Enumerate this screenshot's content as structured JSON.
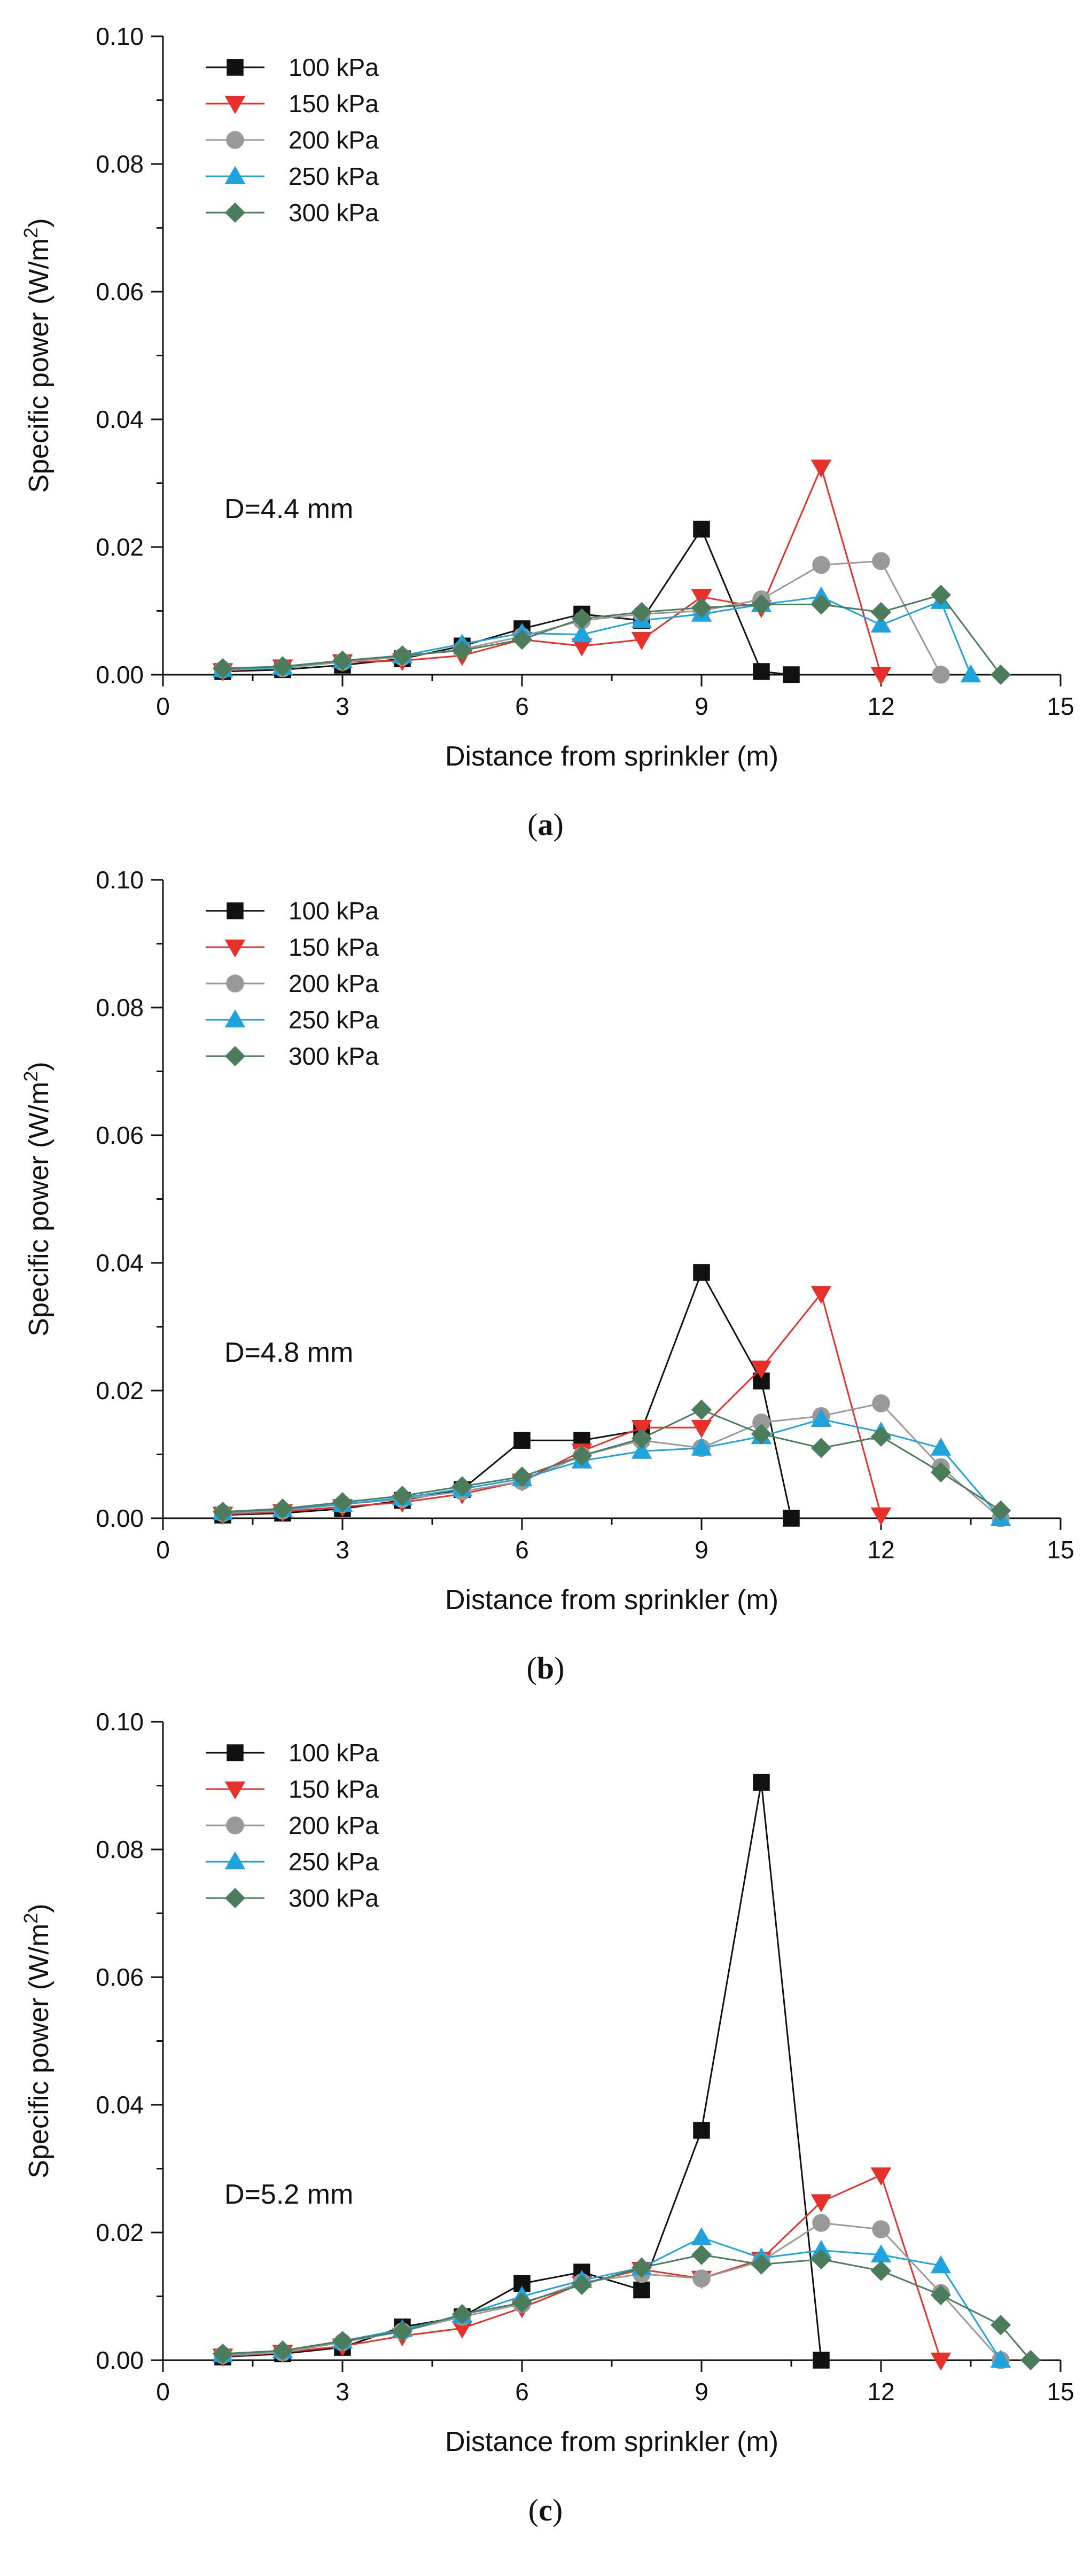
{
  "chart_data": [
    {
      "type": "line",
      "panel_label": "a",
      "annotation": "D=4.4 mm",
      "xlabel": "Distance from sprinkler (m)",
      "ylabel": "Specific power (W/m²)",
      "ylabel_main": "Specific power (W/m",
      "ylabel_sup": "2",
      "ylabel_close": ")",
      "xlim": [
        0,
        15
      ],
      "ylim": [
        0,
        0.1
      ],
      "xticks": [
        0,
        3,
        6,
        9,
        12,
        15
      ],
      "yticks": [
        0,
        0.02,
        0.04,
        0.06,
        0.08,
        0.1
      ],
      "xtick_labels": [
        "0",
        "3",
        "6",
        "9",
        "12",
        "15"
      ],
      "ytick_labels": [
        "0.00",
        "0.02",
        "0.04",
        "0.06",
        "0.08",
        "0.10"
      ],
      "legend_position": "top-left",
      "series": [
        {
          "name": "100 kPa",
          "color": "#111111",
          "marker": "square",
          "x": [
            1,
            2,
            3,
            4,
            5,
            6,
            7,
            8,
            9,
            10,
            10.5
          ],
          "values": [
            0.0005,
            0.0008,
            0.0015,
            0.0025,
            0.0045,
            0.0072,
            0.0095,
            0.0085,
            0.0228,
            0.0005,
            0.0
          ]
        },
        {
          "name": "150 kPa",
          "color": "#e8302a",
          "marker": "triangle-down",
          "x": [
            1,
            2,
            3,
            4,
            5,
            6,
            7,
            8,
            9,
            10,
            11,
            12
          ],
          "values": [
            0.0006,
            0.0012,
            0.002,
            0.0022,
            0.003,
            0.0055,
            0.0045,
            0.0055,
            0.0122,
            0.0105,
            0.0325,
            0.0
          ]
        },
        {
          "name": "200 kPa",
          "color": "#999999",
          "marker": "circle",
          "x": [
            1,
            2,
            3,
            4,
            5,
            6,
            7,
            8,
            9,
            10,
            11,
            12,
            13
          ],
          "values": [
            0.0008,
            0.001,
            0.002,
            0.0028,
            0.004,
            0.006,
            0.0085,
            0.0095,
            0.01,
            0.0118,
            0.0172,
            0.0178,
            0.0
          ]
        },
        {
          "name": "250 kPa",
          "color": "#1fa3dd",
          "marker": "triangle-up",
          "x": [
            1,
            2,
            3,
            4,
            5,
            6,
            7,
            8,
            9,
            10,
            11,
            12,
            13,
            13.5
          ],
          "values": [
            0.0008,
            0.0012,
            0.0022,
            0.003,
            0.0048,
            0.0065,
            0.0063,
            0.0085,
            0.0095,
            0.011,
            0.0122,
            0.0078,
            0.0115,
            0.0
          ]
        },
        {
          "name": "300 kPa",
          "color": "#4b7c5c",
          "marker": "diamond",
          "x": [
            1,
            2,
            3,
            4,
            5,
            6,
            7,
            8,
            9,
            10,
            11,
            12,
            13,
            14
          ],
          "values": [
            0.001,
            0.0013,
            0.0022,
            0.003,
            0.0038,
            0.0055,
            0.0088,
            0.0098,
            0.0105,
            0.011,
            0.011,
            0.0098,
            0.0125,
            0.0
          ]
        }
      ]
    },
    {
      "type": "line",
      "panel_label": "b",
      "annotation": "D=4.8 mm",
      "xlabel": "Distance from sprinkler (m)",
      "ylabel": "Specific power (W/m²)",
      "ylabel_main": "Specific power (W/m",
      "ylabel_sup": "2",
      "ylabel_close": ")",
      "xlim": [
        0,
        15
      ],
      "ylim": [
        0,
        0.1
      ],
      "xticks": [
        0,
        3,
        6,
        9,
        12,
        15
      ],
      "yticks": [
        0,
        0.02,
        0.04,
        0.06,
        0.08,
        0.1
      ],
      "xtick_labels": [
        "0",
        "3",
        "6",
        "9",
        "12",
        "15"
      ],
      "ytick_labels": [
        "0.00",
        "0.02",
        "0.04",
        "0.06",
        "0.08",
        "0.10"
      ],
      "legend_position": "top-left",
      "series": [
        {
          "name": "100 kPa",
          "color": "#111111",
          "marker": "square",
          "x": [
            1,
            2,
            3,
            4,
            5,
            6,
            7,
            8,
            9,
            10,
            10.5
          ],
          "values": [
            0.0005,
            0.0008,
            0.0015,
            0.0028,
            0.0045,
            0.0122,
            0.0122,
            0.0138,
            0.0385,
            0.0215,
            0.0
          ]
        },
        {
          "name": "150 kPa",
          "color": "#e8302a",
          "marker": "triangle-down",
          "x": [
            1,
            2,
            3,
            4,
            5,
            6,
            7,
            8,
            9,
            10,
            11,
            12
          ],
          "values": [
            0.0006,
            0.001,
            0.0018,
            0.0025,
            0.0038,
            0.0058,
            0.0105,
            0.0142,
            0.0142,
            0.0235,
            0.0352,
            0.0005
          ]
        },
        {
          "name": "200 kPa",
          "color": "#999999",
          "marker": "circle",
          "x": [
            1,
            2,
            3,
            4,
            5,
            6,
            7,
            8,
            9,
            10,
            11,
            12,
            13,
            14
          ],
          "values": [
            0.0008,
            0.0012,
            0.0022,
            0.003,
            0.0042,
            0.0058,
            0.0098,
            0.0122,
            0.011,
            0.015,
            0.016,
            0.018,
            0.008,
            0.0
          ]
        },
        {
          "name": "250 kPa",
          "color": "#1fa3dd",
          "marker": "triangle-up",
          "x": [
            1,
            2,
            3,
            4,
            5,
            6,
            7,
            8,
            9,
            10,
            11,
            12,
            13,
            14
          ],
          "values": [
            0.0009,
            0.0014,
            0.0022,
            0.0032,
            0.0046,
            0.0062,
            0.009,
            0.0105,
            0.011,
            0.0128,
            0.0155,
            0.0135,
            0.011,
            0.0
          ]
        },
        {
          "name": "300 kPa",
          "color": "#4b7c5c",
          "marker": "diamond",
          "x": [
            1,
            2,
            3,
            4,
            5,
            6,
            7,
            8,
            9,
            10,
            11,
            12,
            13,
            14
          ],
          "values": [
            0.001,
            0.0015,
            0.0025,
            0.0035,
            0.005,
            0.0065,
            0.0098,
            0.0125,
            0.017,
            0.0132,
            0.011,
            0.0128,
            0.0072,
            0.0012
          ]
        }
      ]
    },
    {
      "type": "line",
      "panel_label": "c",
      "annotation": "D=5.2 mm",
      "xlabel": "Distance from sprinkler (m)",
      "ylabel": "Specific power (W/m²)",
      "ylabel_main": "Specific power (W/m",
      "ylabel_sup": "2",
      "ylabel_close": ")",
      "xlim": [
        0,
        15
      ],
      "ylim": [
        0,
        0.1
      ],
      "xticks": [
        0,
        3,
        6,
        9,
        12,
        15
      ],
      "yticks": [
        0,
        0.02,
        0.04,
        0.06,
        0.08,
        0.1
      ],
      "xtick_labels": [
        "0",
        "3",
        "6",
        "9",
        "12",
        "15"
      ],
      "ytick_labels": [
        "0.00",
        "0.02",
        "0.04",
        "0.06",
        "0.08",
        "0.10"
      ],
      "legend_position": "top-left",
      "series": [
        {
          "name": "100 kPa",
          "color": "#111111",
          "marker": "square",
          "x": [
            1,
            2,
            3,
            4,
            5,
            6,
            7,
            8,
            9,
            10,
            11
          ],
          "values": [
            0.0005,
            0.001,
            0.002,
            0.0052,
            0.0068,
            0.012,
            0.0138,
            0.011,
            0.036,
            0.0905,
            0.0
          ]
        },
        {
          "name": "150 kPa",
          "color": "#e8302a",
          "marker": "triangle-down",
          "x": [
            1,
            2,
            3,
            4,
            5,
            6,
            7,
            8,
            9,
            10,
            11,
            12,
            13
          ],
          "values": [
            0.0006,
            0.0012,
            0.0022,
            0.0038,
            0.005,
            0.0082,
            0.012,
            0.0142,
            0.0128,
            0.0158,
            0.0248,
            0.029,
            0.0
          ]
        },
        {
          "name": "200 kPa",
          "color": "#999999",
          "marker": "circle",
          "x": [
            1,
            2,
            3,
            4,
            5,
            6,
            7,
            8,
            9,
            10,
            11,
            12,
            13,
            14
          ],
          "values": [
            0.0008,
            0.0012,
            0.0028,
            0.0045,
            0.0068,
            0.0088,
            0.0122,
            0.0135,
            0.0128,
            0.0155,
            0.0215,
            0.0205,
            0.0105,
            0.0
          ]
        },
        {
          "name": "250 kPa",
          "color": "#1fa3dd",
          "marker": "triangle-up",
          "x": [
            1,
            2,
            3,
            4,
            5,
            6,
            7,
            8,
            9,
            10,
            11,
            12,
            13,
            14
          ],
          "values": [
            0.0009,
            0.0015,
            0.003,
            0.0048,
            0.007,
            0.01,
            0.0125,
            0.0145,
            0.0192,
            0.016,
            0.0172,
            0.0165,
            0.0148,
            0.0
          ]
        },
        {
          "name": "300 kPa",
          "color": "#4b7c5c",
          "marker": "diamond",
          "x": [
            1,
            2,
            3,
            4,
            5,
            6,
            7,
            8,
            9,
            10,
            11,
            12,
            13,
            14,
            14.5
          ],
          "values": [
            0.001,
            0.0015,
            0.003,
            0.0045,
            0.0072,
            0.009,
            0.0118,
            0.0145,
            0.0165,
            0.015,
            0.0158,
            0.014,
            0.0102,
            0.0055,
            0.0
          ]
        }
      ]
    }
  ]
}
